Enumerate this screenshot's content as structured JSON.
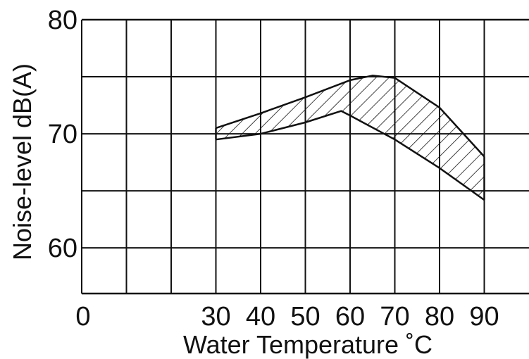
{
  "chart_data": {
    "type": "area",
    "xlabel": "Water Temperature ˚C",
    "ylabel": "Noise-level dB(A)",
    "xlim": [
      0,
      100
    ],
    "ylim": [
      56,
      80
    ],
    "x_ticks": [
      "0",
      "30",
      "40",
      "50",
      "60",
      "70",
      "80",
      "90"
    ],
    "x_tick_values": [
      0,
      30,
      40,
      50,
      60,
      70,
      80,
      90
    ],
    "y_ticks": [
      "80",
      "70",
      "60"
    ],
    "y_tick_values": [
      80,
      70,
      60
    ],
    "grid": true,
    "grid_x": [
      0,
      10,
      20,
      30,
      40,
      50,
      60,
      70,
      80,
      90
    ],
    "grid_y": [
      60,
      65,
      70,
      75
    ],
    "fill": "hatched",
    "series": [
      {
        "x": [
          30,
          40,
          50,
          60,
          65,
          70,
          80,
          90
        ],
        "values": [
          70.5,
          71.8,
          73.2,
          74.7,
          75.1,
          74.9,
          72.3,
          68.0
        ]
      },
      {
        "x": [
          30,
          40,
          50,
          58,
          60,
          70,
          80,
          90
        ],
        "values": [
          69.5,
          70.0,
          71.0,
          72.0,
          71.6,
          69.5,
          67.0,
          64.2
        ]
      }
    ]
  }
}
